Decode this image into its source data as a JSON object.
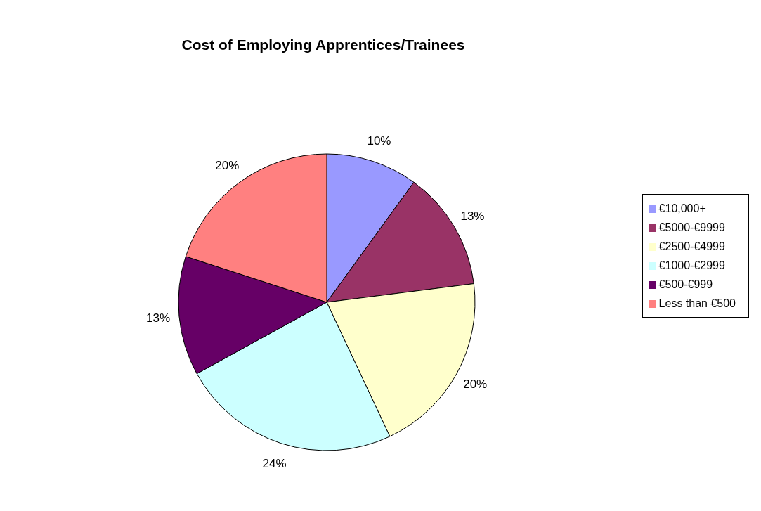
{
  "chart_data": {
    "type": "pie",
    "title": "Cost of Employing Apprentices/Trainees",
    "categories": [
      "€10,000+",
      "€5000-€9999",
      "€2500-€4999",
      "€1000-€2999",
      "€500-€999",
      "Less than €500"
    ],
    "values": [
      10,
      13,
      20,
      24,
      13,
      20
    ],
    "value_labels": [
      "10%",
      "13%",
      "20%",
      "24%",
      "13%",
      "20%"
    ],
    "colors": [
      "#9999ff",
      "#993366",
      "#ffffcc",
      "#ccffff",
      "#660066",
      "#ff8080"
    ],
    "legend": "right"
  }
}
